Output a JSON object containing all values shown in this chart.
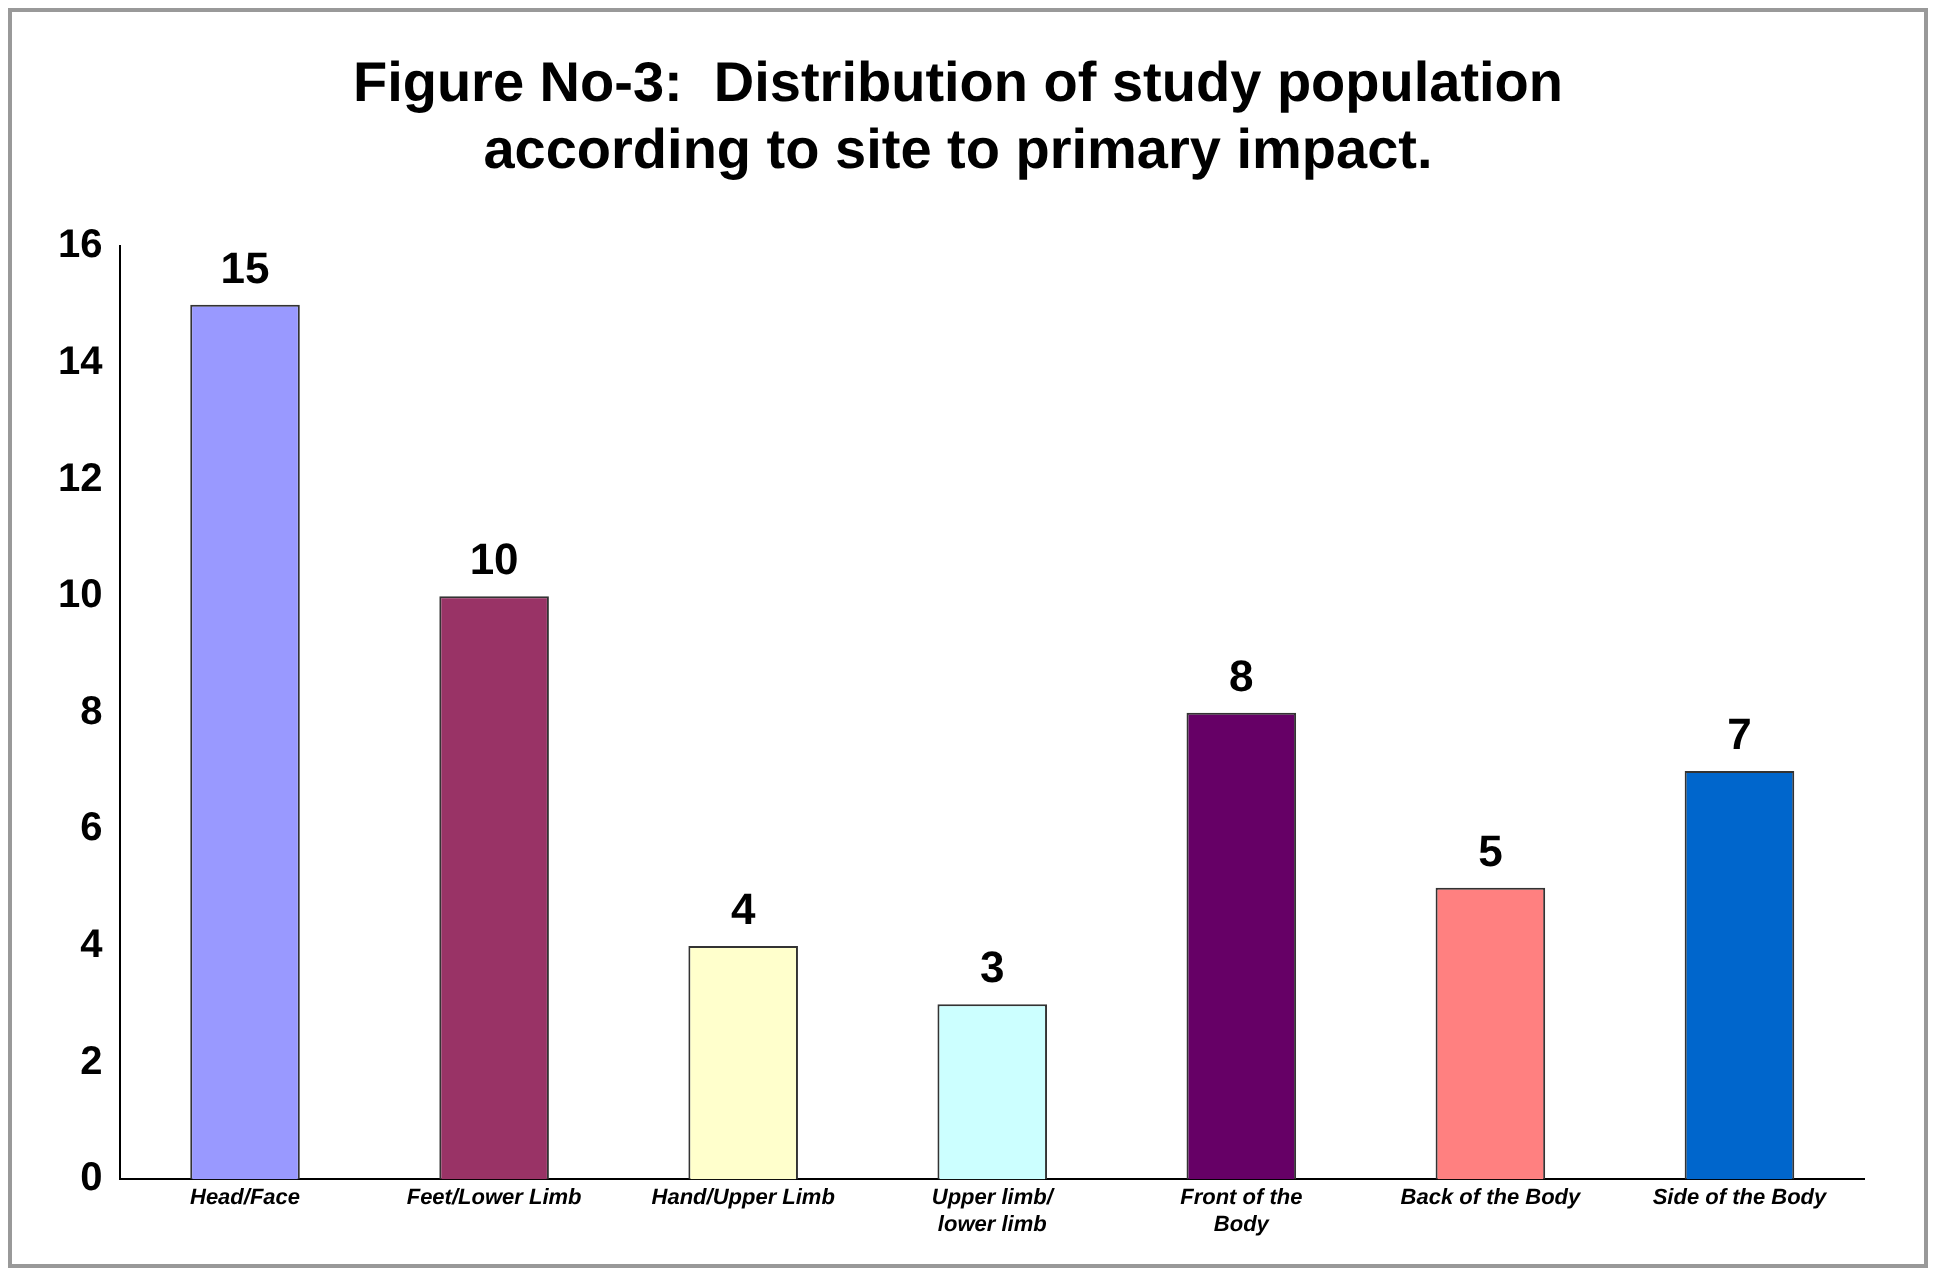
{
  "chart_data": {
    "type": "bar",
    "title": "Figure No-3:  Distribution of study population according to site to primary impact.",
    "categories": [
      "Head/Face",
      "Feet/Lower Limb",
      "Hand/Upper Limb",
      "Upper limb/ lower limb",
      "Front of the Body",
      "Back of the Body",
      "Side of the Body"
    ],
    "values": [
      15,
      10,
      4,
      3,
      8,
      5,
      7
    ],
    "colors": [
      "#9999ff",
      "#993366",
      "#ffffcc",
      "#ccffff",
      "#660066",
      "#ff8080",
      "#0066cc"
    ],
    "ylim": [
      0,
      16
    ],
    "yticks": [
      0,
      2,
      4,
      6,
      8,
      10,
      12,
      14,
      16
    ],
    "grid": false,
    "legend": false,
    "data_labels": true
  }
}
